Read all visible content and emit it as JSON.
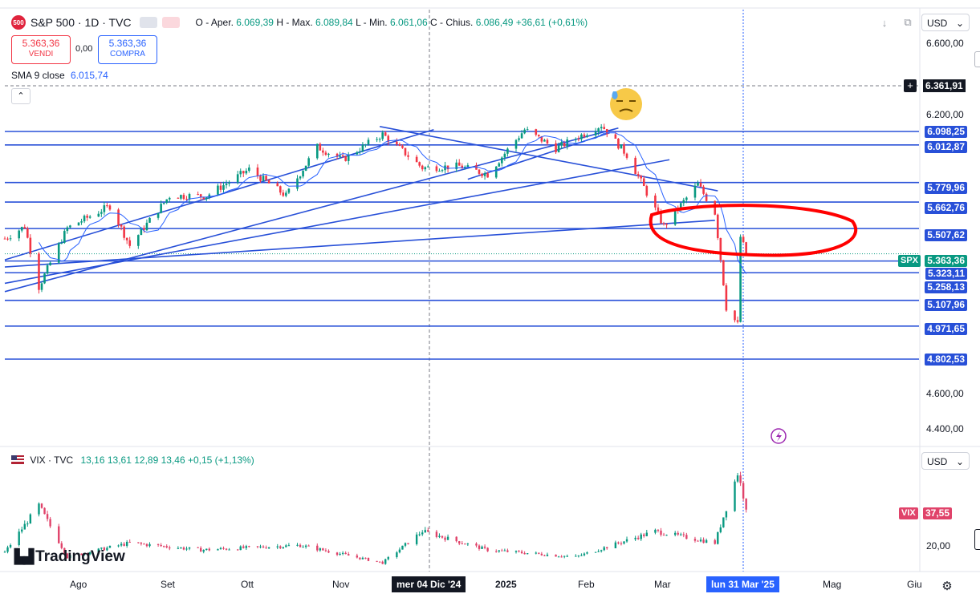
{
  "header": {
    "symbol_logo": "500",
    "title": "S&P 500 · 1D · TVC",
    "ohlc_open_label": "O - Aper.",
    "ohlc_open": "6.069,39",
    "ohlc_high_label": "H - Max.",
    "ohlc_high": "6.089,84",
    "ohlc_low_label": "L - Min.",
    "ohlc_low": "6.061,06",
    "ohlc_close_label": "C - Chius.",
    "ohlc_close": "6.086,49",
    "ohlc_change": "+36,61 (+0,61%)"
  },
  "trade": {
    "sell_price": "5.363,36",
    "sell_label": "VENDI",
    "spread": "0,00",
    "buy_price": "5.363,36",
    "buy_label": "COMPRA"
  },
  "indicator": {
    "name": "SMA 9 close",
    "value": "6.015,74"
  },
  "currency": "USD",
  "price_axis": {
    "ticks": [
      "6.600,00",
      "6.200,00",
      "4.600,00",
      "4.400,00"
    ],
    "crosshair_price": "6.361,91",
    "symbol_tag": "SPX",
    "last_price": "5.363,36"
  },
  "levels": [
    "6.098,25",
    "6.012,87",
    "5.779,96",
    "5.662,76",
    "5.507,62",
    "5.323,11",
    "5.258,13",
    "5.107,96",
    "4.971,65",
    "4.802,53"
  ],
  "vix": {
    "title": "VIX · TVC",
    "o": "13,16",
    "h": "13,61",
    "l": "12,89",
    "c": "13,46",
    "change": "+0,15 (+1,13%)",
    "tag": "VIX",
    "last": "37,55",
    "tick": "20,00",
    "currency": "USD"
  },
  "brand": "TradingView",
  "time_axis": {
    "labels": [
      "Ago",
      "Set",
      "Ott",
      "Nov",
      "2025",
      "Feb",
      "Mar",
      "Mag",
      "Giu"
    ],
    "crosshair_date_1": "mer 04 Dic '24",
    "crosshair_date_2": "lun 31 Mar '25"
  },
  "colors": {
    "up": "#089981",
    "down": "#f23645",
    "level_line": "#2850d8",
    "annotation": "#ff0000",
    "sma": "#2962ff"
  },
  "chart_data": {
    "type": "candlestick",
    "title": "S&P 500 · 1D · TVC",
    "ylim": [
      4650,
      6650
    ],
    "y_scale": "log",
    "x_labels": [
      "Ago",
      "Set",
      "Ott",
      "Nov",
      "2025",
      "Feb",
      "Mar",
      "Mag",
      "Giu"
    ],
    "grid": false,
    "series": [
      {
        "name": "S&P 500",
        "close_path": [
          [
            "2024-07-24",
            5450
          ],
          [
            "2024-07-31",
            5520
          ],
          [
            "2024-08-05",
            5180
          ],
          [
            "2024-08-15",
            5510
          ],
          [
            "2024-08-30",
            5640
          ],
          [
            "2024-09-06",
            5410
          ],
          [
            "2024-09-20",
            5700
          ],
          [
            "2024-10-03",
            5700
          ],
          [
            "2024-10-18",
            5860
          ],
          [
            "2024-10-31",
            5700
          ],
          [
            "2024-11-11",
            6000
          ],
          [
            "2024-11-20",
            5920
          ],
          [
            "2024-12-04",
            6080
          ],
          [
            "2024-12-18",
            5870
          ],
          [
            "2024-12-31",
            5880
          ],
          [
            "2025-01-10",
            5830
          ],
          [
            "2025-01-23",
            6110
          ],
          [
            "2025-02-03",
            5990
          ],
          [
            "2025-02-19",
            6140
          ],
          [
            "2025-02-28",
            5950
          ],
          [
            "2025-03-13",
            5520
          ],
          [
            "2025-03-25",
            5770
          ],
          [
            "2025-03-31",
            5600
          ],
          [
            "2025-04-04",
            5070
          ],
          [
            "2025-04-08",
            4980
          ],
          [
            "2025-04-09",
            5460
          ],
          [
            "2025-04-11",
            5363
          ]
        ]
      },
      {
        "name": "SMA 9 close",
        "last": 6015.74
      },
      {
        "name": "VIX",
        "close_path": [
          [
            "2024-07-24",
            18
          ],
          [
            "2024-08-05",
            38
          ],
          [
            "2024-08-15",
            16
          ],
          [
            "2024-09-06",
            22
          ],
          [
            "2024-10-01",
            19
          ],
          [
            "2024-11-05",
            21
          ],
          [
            "2024-12-04",
            13.5
          ],
          [
            "2024-12-18",
            27
          ],
          [
            "2025-01-10",
            19
          ],
          [
            "2025-02-10",
            16
          ],
          [
            "2025-03-10",
            27
          ],
          [
            "2025-03-31",
            22
          ],
          [
            "2025-04-08",
            52
          ],
          [
            "2025-04-11",
            37.55
          ]
        ]
      }
    ],
    "price_levels": [
      6098.25,
      6012.87,
      5779.96,
      5662.76,
      5507.62,
      5323.11,
      5258.13,
      5107.96,
      4971.65,
      4802.53
    ]
  }
}
